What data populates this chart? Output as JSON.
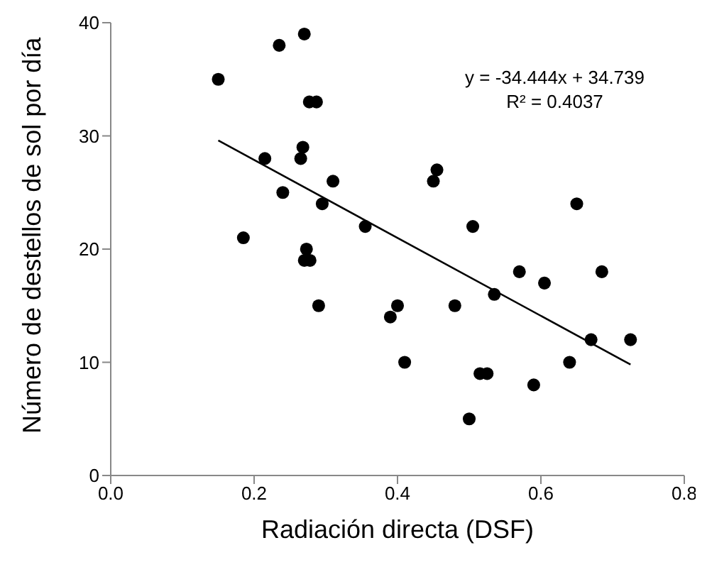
{
  "chart_data": {
    "type": "scatter",
    "xlabel": "Radiación directa   (DSF)",
    "ylabel": "Número de destellos de sol por día",
    "xlim": [
      0,
      0.8
    ],
    "ylim": [
      0,
      40
    ],
    "xticks": [
      {
        "value": 0,
        "label": "0.0"
      },
      {
        "value": 0.2,
        "label": "0.2"
      },
      {
        "value": 0.4,
        "label": "0.4"
      },
      {
        "value": 0.6,
        "label": "0.6"
      },
      {
        "value": 0.8,
        "label": "0.8"
      }
    ],
    "yticks": [
      0,
      10,
      20,
      30,
      40
    ],
    "annotations": [
      "y = -34.444x + 34.739",
      "R² = 0.4037"
    ],
    "series": [
      {
        "marker": "circle",
        "color": "#000000",
        "x": [
          0.15,
          0.185,
          0.215,
          0.235,
          0.24,
          0.265,
          0.268,
          0.27,
          0.273,
          0.277,
          0.287,
          0.27,
          0.278,
          0.29,
          0.295,
          0.31,
          0.355,
          0.39,
          0.4,
          0.41,
          0.45,
          0.455,
          0.48,
          0.5,
          0.505,
          0.515,
          0.525,
          0.535,
          0.57,
          0.59,
          0.605,
          0.64,
          0.65,
          0.67,
          0.685,
          0.725
        ],
        "values": [
          35,
          21,
          28,
          38,
          25,
          28,
          29,
          39,
          20,
          33,
          33,
          19,
          19,
          15,
          24,
          26,
          22,
          14,
          15,
          10,
          26,
          27,
          15,
          5,
          22,
          9,
          9,
          16,
          18,
          8,
          17,
          10,
          24,
          12,
          18,
          12
        ]
      },
      {
        "type": "line",
        "color": "#000000",
        "x": [
          0.15,
          0.725
        ],
        "values": [
          29.6,
          9.8
        ]
      }
    ]
  }
}
